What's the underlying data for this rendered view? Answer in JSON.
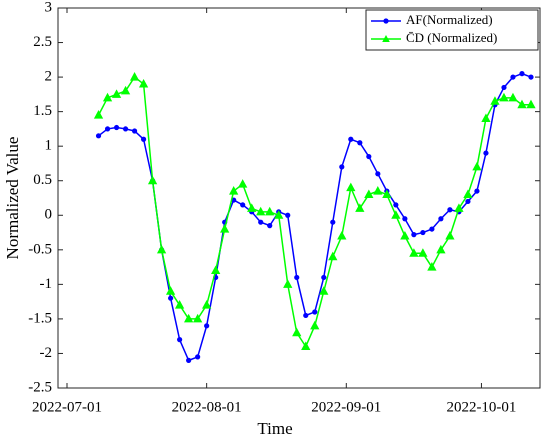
{
  "chart_data": {
    "type": "line",
    "xlabel": "Time",
    "ylabel": "Normalized Value",
    "x": [
      "2022-07-08",
      "2022-07-10",
      "2022-07-12",
      "2022-07-14",
      "2022-07-16",
      "2022-07-18",
      "2022-07-20",
      "2022-07-22",
      "2022-07-24",
      "2022-07-26",
      "2022-07-28",
      "2022-07-30",
      "2022-08-01",
      "2022-08-03",
      "2022-08-05",
      "2022-08-07",
      "2022-08-09",
      "2022-08-11",
      "2022-08-13",
      "2022-08-15",
      "2022-08-17",
      "2022-08-19",
      "2022-08-21",
      "2022-08-23",
      "2022-08-25",
      "2022-08-27",
      "2022-08-29",
      "2022-08-31",
      "2022-09-02",
      "2022-09-04",
      "2022-09-06",
      "2022-09-08",
      "2022-09-10",
      "2022-09-12",
      "2022-09-14",
      "2022-09-16",
      "2022-09-18",
      "2022-09-20",
      "2022-09-22",
      "2022-09-24",
      "2022-09-26",
      "2022-09-28",
      "2022-09-30",
      "2022-10-02",
      "2022-10-04",
      "2022-10-06",
      "2022-10-08",
      "2022-10-10",
      "2022-10-12"
    ],
    "series": [
      {
        "name": "AF(Normalized)",
        "color": "#0000ff",
        "marker": "circle",
        "values": [
          1.15,
          1.25,
          1.27,
          1.25,
          1.22,
          1.1,
          0.5,
          -0.5,
          -1.2,
          -1.8,
          -2.1,
          -2.05,
          -1.6,
          -0.9,
          -0.1,
          0.22,
          0.15,
          0.05,
          -0.1,
          -0.15,
          0.05,
          0.0,
          -0.9,
          -1.45,
          -1.4,
          -0.9,
          -0.1,
          0.7,
          1.1,
          1.05,
          0.85,
          0.6,
          0.35,
          0.15,
          -0.05,
          -0.28,
          -0.25,
          -0.2,
          -0.05,
          0.08,
          0.05,
          0.2,
          0.35,
          0.9,
          1.6,
          1.85,
          2.0,
          2.05,
          2.0
        ]
      },
      {
        "name": "C̄D (Normalized)",
        "color": "#00ff00",
        "marker": "triangle",
        "values": [
          1.45,
          1.7,
          1.75,
          1.8,
          2.0,
          1.9,
          0.5,
          -0.5,
          -1.1,
          -1.3,
          -1.5,
          -1.5,
          -1.3,
          -0.8,
          -0.2,
          0.35,
          0.45,
          0.1,
          0.05,
          0.05,
          0.0,
          -1.0,
          -1.7,
          -1.9,
          -1.6,
          -1.1,
          -0.6,
          -0.3,
          0.4,
          0.1,
          0.3,
          0.35,
          0.3,
          0.0,
          -0.3,
          -0.55,
          -0.55,
          -0.75,
          -0.5,
          -0.3,
          0.1,
          0.3,
          0.7,
          1.4,
          1.65,
          1.7,
          1.7,
          1.6,
          1.6
        ]
      }
    ],
    "xlim": [
      "2022-06-29",
      "2022-10-14"
    ],
    "xticks": [
      "2022-07-01",
      "2022-08-01",
      "2022-09-01",
      "2022-10-01"
    ],
    "ylim": [
      -2.5,
      3
    ],
    "yticks": [
      -2.5,
      -2,
      -1.5,
      -1,
      -0.5,
      0,
      0.5,
      1,
      1.5,
      2,
      2.5,
      3
    ],
    "legend": "top-right"
  }
}
